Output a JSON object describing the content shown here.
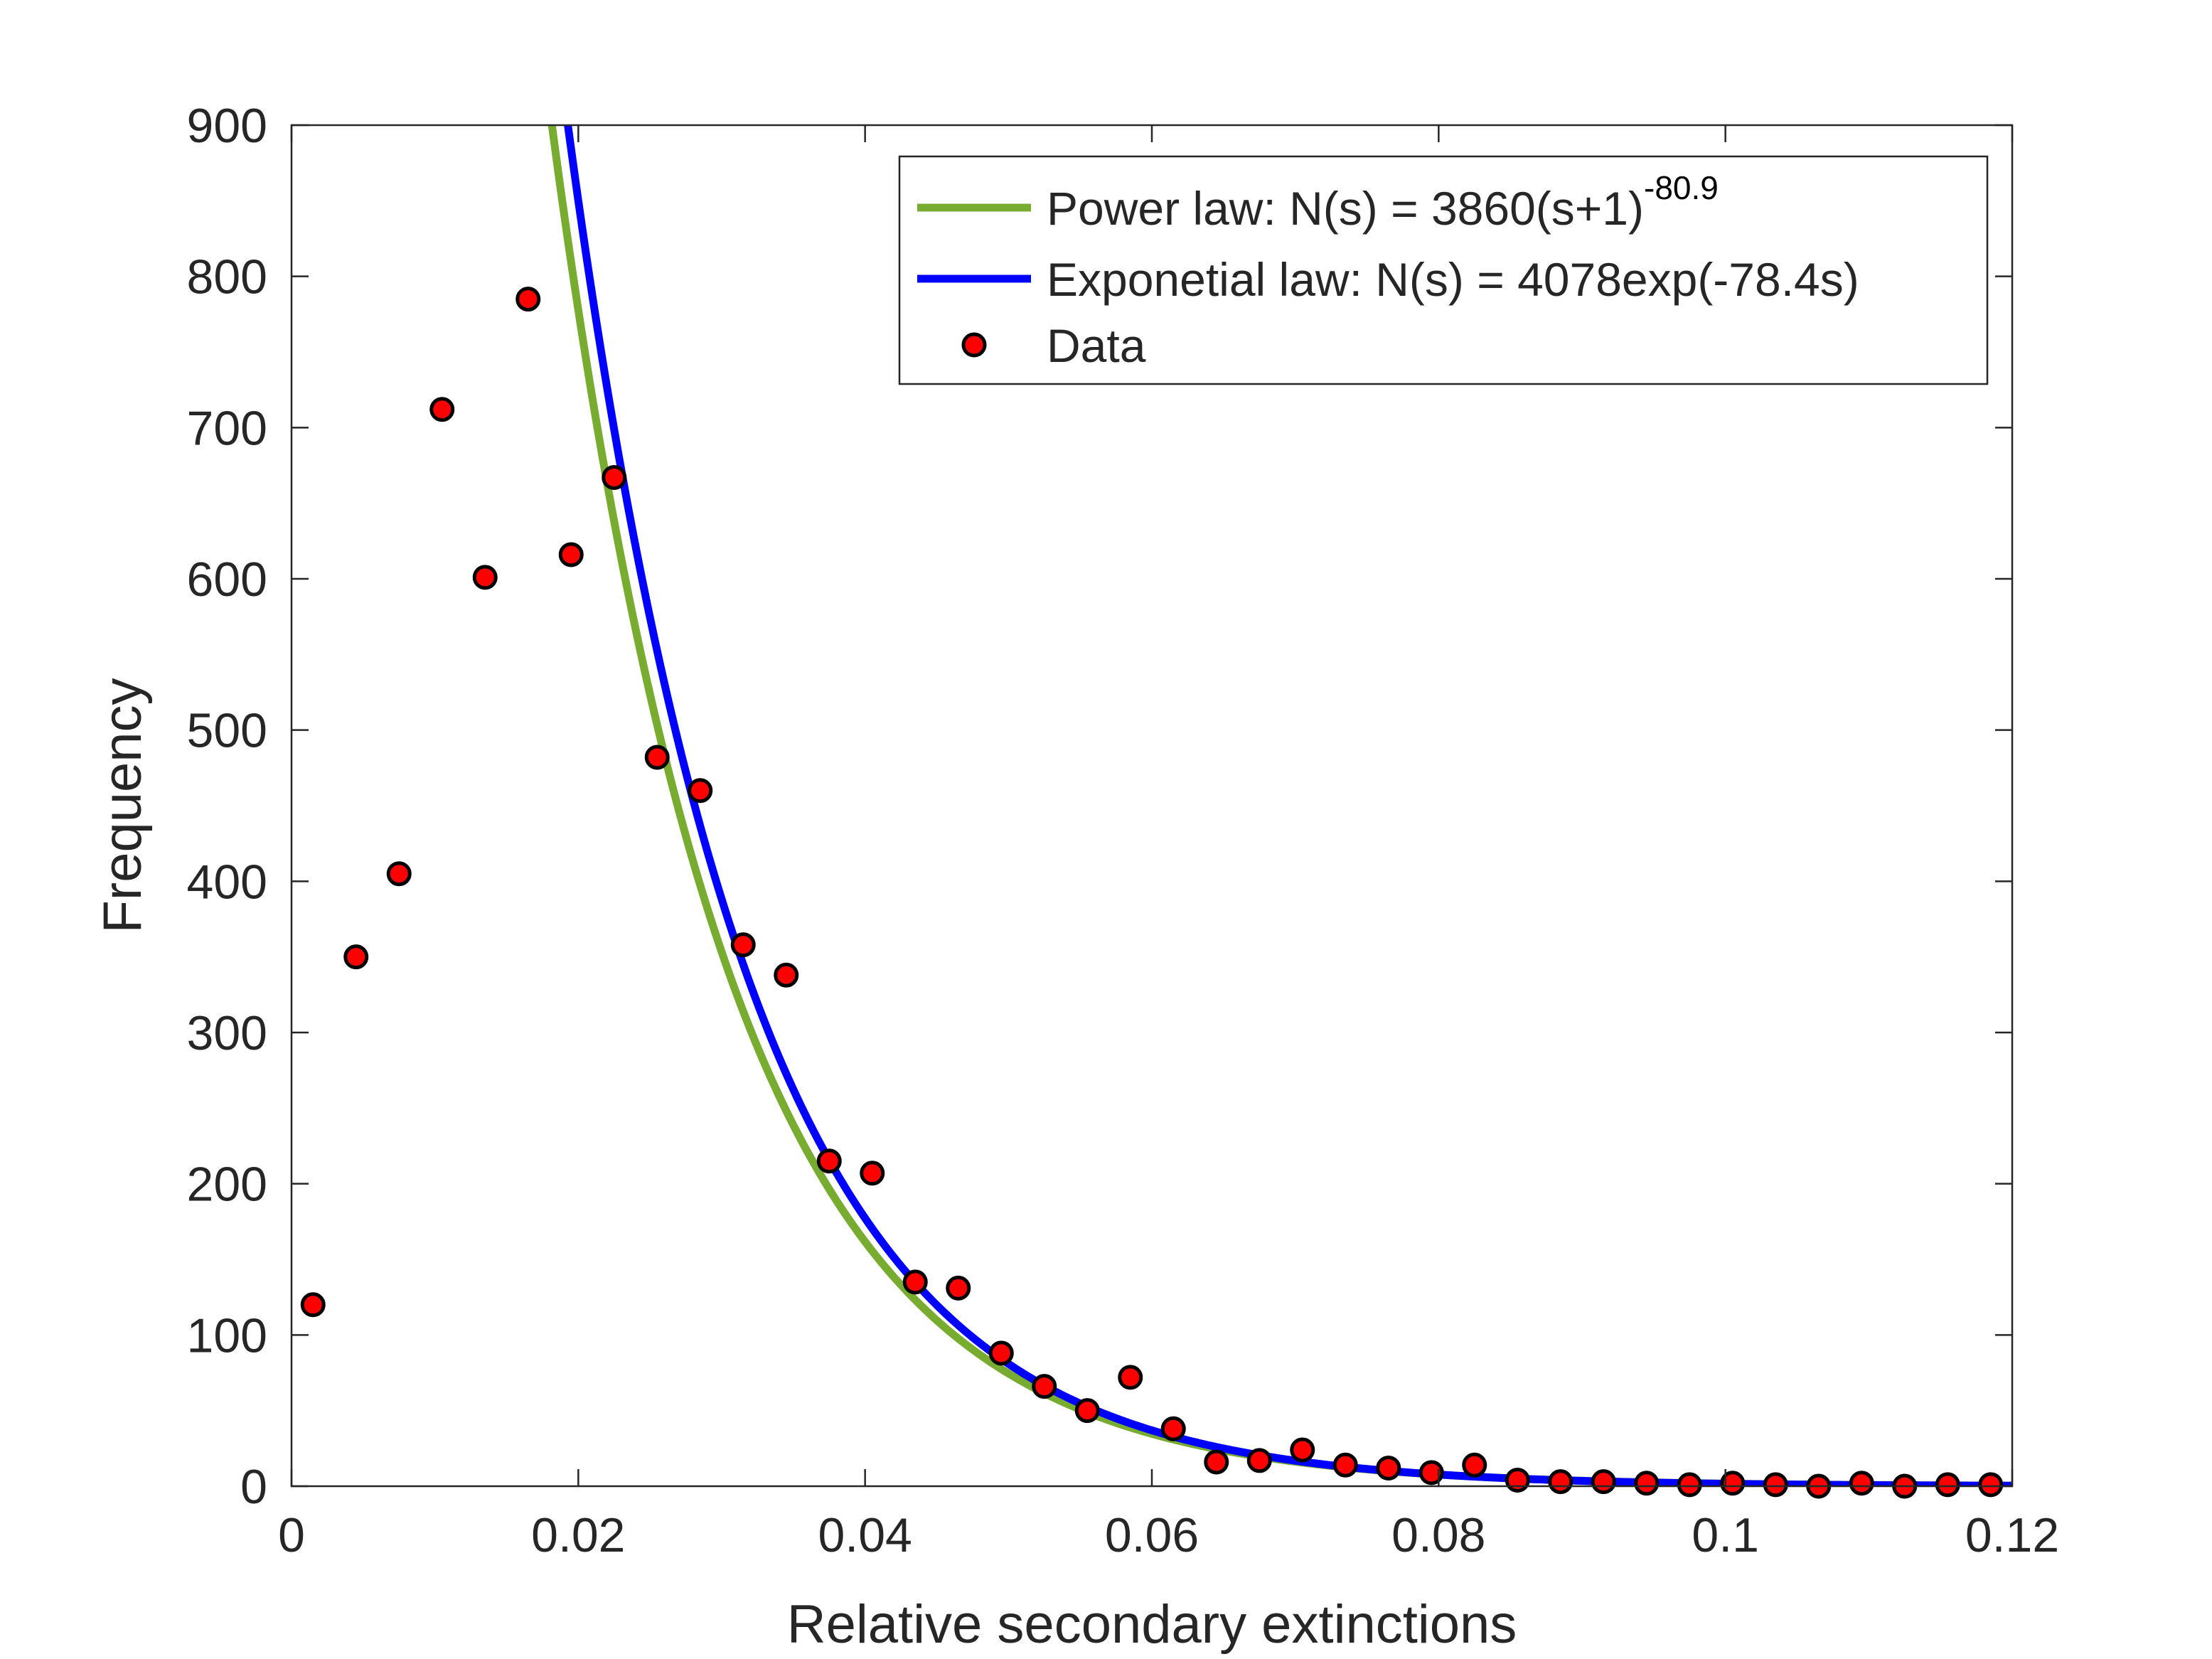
{
  "chart_data": {
    "type": "scatter",
    "xlabel": "Relative secondary extinctions",
    "ylabel": "Frequency",
    "xlim": [
      0,
      0.12
    ],
    "ylim": [
      0,
      900
    ],
    "xticks": [
      0,
      0.02,
      0.04,
      0.06,
      0.08,
      0.1,
      0.12
    ],
    "xtick_labels": [
      "0",
      "0.02",
      "0.04",
      "0.06",
      "0.08",
      "0.1",
      "0.12"
    ],
    "yticks": [
      0,
      100,
      200,
      300,
      400,
      500,
      600,
      700,
      800,
      900
    ],
    "ytick_labels": [
      "0",
      "100",
      "200",
      "300",
      "400",
      "500",
      "600",
      "700",
      "800",
      "900"
    ],
    "grid": false,
    "legend_position": "top-right",
    "legend": {
      "power_prefix": "Power law: N(s) = 3860(s+1)",
      "power_exponent": "-80.9",
      "exp_label": "Exponetial law: N(s) = 4078exp(-78.4s)",
      "data_label": "Data"
    },
    "series": [
      {
        "kind": "line",
        "model": "power",
        "coefficient": 3860,
        "exponent": -80.9,
        "color": "#77AC30"
      },
      {
        "kind": "line",
        "model": "exponential",
        "coefficient": 4078,
        "rate": -78.4,
        "color": "#0000FF"
      },
      {
        "kind": "scatter",
        "color": "#FF0000",
        "edge_color": "#000000",
        "x": [
          0.0015,
          0.0045,
          0.0075,
          0.0105,
          0.0135,
          0.0165,
          0.0195,
          0.0225,
          0.0255,
          0.0285,
          0.0315,
          0.0345,
          0.0375,
          0.0405,
          0.0435,
          0.0465,
          0.0495,
          0.0525,
          0.0555,
          0.0585,
          0.0615,
          0.0645,
          0.0675,
          0.0705,
          0.0735,
          0.0765,
          0.0795,
          0.0825,
          0.0855,
          0.0885,
          0.0915,
          0.0945,
          0.0975,
          0.1005,
          0.1035,
          0.1065,
          0.1095,
          0.1125,
          0.1155,
          0.1185
        ],
        "y": [
          120,
          350,
          405,
          712,
          601,
          785,
          616,
          667,
          482,
          460,
          358,
          338,
          215,
          207,
          135,
          131,
          88,
          66,
          50,
          72,
          38,
          16,
          17,
          24,
          14,
          12,
          9,
          14,
          4,
          3,
          3,
          2,
          1,
          2,
          1,
          0,
          2,
          0,
          1,
          1
        ]
      }
    ]
  }
}
